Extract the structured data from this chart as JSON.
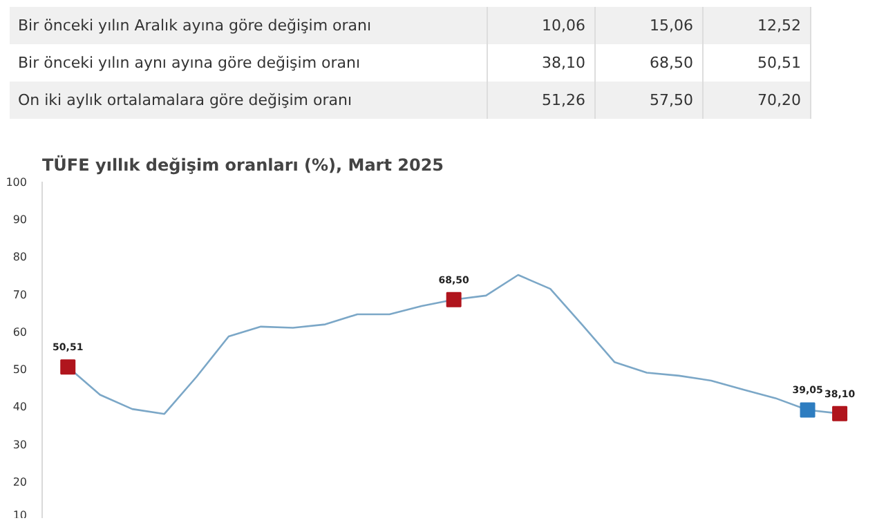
{
  "chart_data": {
    "type": "line",
    "title": "TÜFE yıllık değişim oranları (%), Mart 2025",
    "annotations": [
      "Bir önceki yılın Aralık ayına göre değişim oranı",
      "10,06",
      "15,06",
      "12,52",
      "Bir önceki yılın aynı ayına göre değişim oranı",
      "38,10",
      "68,50",
      "50,51",
      "On iki aylık ortalamalara göre değişim oranı",
      "51,26",
      "57,50",
      "70,20"
    ],
    "categories": [
      null,
      null,
      null,
      null,
      null,
      null,
      null,
      null,
      null,
      null,
      null,
      null,
      null,
      null,
      null,
      null,
      null,
      null,
      null,
      null,
      null,
      null,
      null,
      null,
      null
    ],
    "series": [
      {
        "color": "#7ba7c7",
        "values": [
          50.51,
          43.1,
          39.3,
          38.0,
          47.9,
          58.7,
          61.3,
          61.0,
          61.9,
          64.6,
          64.6,
          66.8,
          68.5,
          69.6,
          75.1,
          71.4,
          61.7,
          51.8,
          49.0,
          48.2,
          46.9,
          44.5,
          42.2,
          39.05,
          38.1
        ],
        "colors": [
          "#b0151d",
          null,
          null,
          null,
          null,
          null,
          null,
          null,
          null,
          null,
          null,
          null,
          "#b0151d",
          null,
          null,
          null,
          null,
          null,
          null,
          null,
          null,
          null,
          null,
          "#2e7dc0",
          "#b0151d"
        ],
        "value_labels": [
          "50,51",
          null,
          null,
          null,
          null,
          null,
          null,
          null,
          null,
          null,
          null,
          null,
          "68,50",
          null,
          null,
          null,
          null,
          null,
          null,
          null,
          null,
          null,
          null,
          "39,05",
          "38,10"
        ]
      }
    ],
    "ylim": [
      10,
      100
    ],
    "yticks": [
      10,
      20,
      30,
      40,
      50,
      60,
      70,
      80,
      90,
      100
    ],
    "grid": false
  }
}
